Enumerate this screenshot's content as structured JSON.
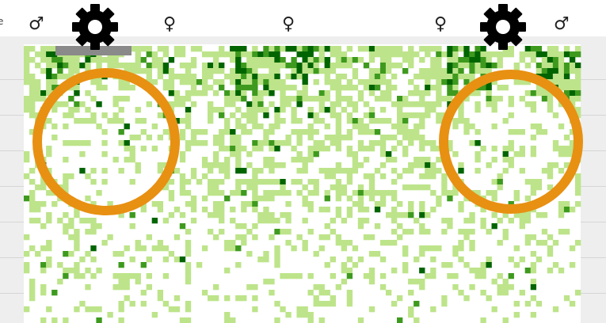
{
  "edge_text": "e",
  "symbols": {
    "male": "♂",
    "female": "♀"
  },
  "icons": {
    "gear": "gear-icon",
    "ring": "circle-highlight"
  },
  "colors": {
    "dark_green": "#006400",
    "mid_green": "#3e9a1e",
    "light_green": "#bde48a",
    "orange": "#e89012",
    "gray_bar": "#8a8a8a",
    "frame": "#eeeeee"
  },
  "grid": {
    "columns": 100,
    "rows": 50
  }
}
